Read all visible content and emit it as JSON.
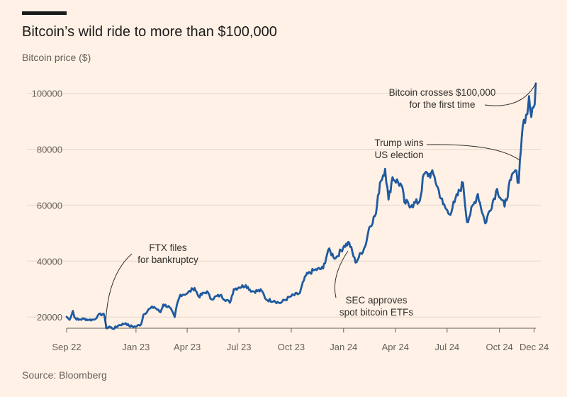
{
  "chart_data": {
    "type": "line",
    "title": "Bitcoin’s wild ride to more than $100,000",
    "ylabel": "Bitcoin price ($)",
    "source": "Source: Bloomberg",
    "x_range": [
      "2022-09-01",
      "2024-12-04"
    ],
    "ylim": [
      16000,
      108000
    ],
    "y_ticks": [
      20000,
      40000,
      60000,
      80000,
      100000
    ],
    "x_ticks": [
      {
        "label": "Sep 22",
        "date": "2022-09-01"
      },
      {
        "label": "Jan 23",
        "date": "2023-01-01"
      },
      {
        "label": "Apr 23",
        "date": "2023-04-01"
      },
      {
        "label": "Jul 23",
        "date": "2023-07-01"
      },
      {
        "label": "Oct 23",
        "date": "2023-10-01"
      },
      {
        "label": "Jan 24",
        "date": "2024-01-01"
      },
      {
        "label": "Apr 24",
        "date": "2024-04-01"
      },
      {
        "label": "Jul 24",
        "date": "2024-07-01"
      },
      {
        "label": "Oct 24",
        "date": "2024-10-01"
      },
      {
        "label": "Dec 24",
        "date": "2024-12-01"
      }
    ],
    "grid": true,
    "colors": {
      "line": "#1f5aa0",
      "grid": "#e5d8cc",
      "text": "#66605c",
      "accent": "#33302e"
    },
    "series": [
      {
        "points": [
          [
            "2022-09-01",
            20100
          ],
          [
            "2022-09-06",
            19000
          ],
          [
            "2022-09-12",
            22200
          ],
          [
            "2022-09-15",
            19800
          ],
          [
            "2022-09-22",
            19000
          ],
          [
            "2022-10-01",
            19400
          ],
          [
            "2022-10-10",
            19000
          ],
          [
            "2022-10-20",
            19100
          ],
          [
            "2022-10-26",
            20600
          ],
          [
            "2022-11-05",
            21200
          ],
          [
            "2022-11-08",
            18500
          ],
          [
            "2022-11-10",
            16000
          ],
          [
            "2022-11-15",
            16600
          ],
          [
            "2022-11-22",
            15800
          ],
          [
            "2022-12-01",
            17000
          ],
          [
            "2022-12-14",
            17800
          ],
          [
            "2022-12-20",
            16800
          ],
          [
            "2022-12-31",
            16550
          ],
          [
            "2023-01-10",
            17400
          ],
          [
            "2023-01-14",
            20800
          ],
          [
            "2023-01-25",
            23000
          ],
          [
            "2023-02-02",
            23600
          ],
          [
            "2023-02-13",
            21700
          ],
          [
            "2023-02-18",
            24500
          ],
          [
            "2023-03-01",
            23500
          ],
          [
            "2023-03-10",
            20000
          ],
          [
            "2023-03-14",
            24500
          ],
          [
            "2023-03-20",
            28000
          ],
          [
            "2023-04-01",
            28400
          ],
          [
            "2023-04-11",
            30000
          ],
          [
            "2023-04-14",
            30400
          ],
          [
            "2023-04-21",
            27300
          ],
          [
            "2023-05-06",
            29200
          ],
          [
            "2023-05-12",
            26500
          ],
          [
            "2023-05-29",
            27800
          ],
          [
            "2023-06-15",
            25100
          ],
          [
            "2023-06-22",
            30000
          ],
          [
            "2023-07-01",
            30600
          ],
          [
            "2023-07-13",
            31400
          ],
          [
            "2023-07-24",
            29200
          ],
          [
            "2023-08-10",
            29400
          ],
          [
            "2023-08-18",
            26200
          ],
          [
            "2023-09-01",
            25800
          ],
          [
            "2023-09-11",
            25000
          ],
          [
            "2023-10-01",
            27500
          ],
          [
            "2023-10-16",
            28500
          ],
          [
            "2023-10-23",
            33000
          ],
          [
            "2023-10-25",
            34500
          ],
          [
            "2023-11-09",
            36700
          ],
          [
            "2023-11-26",
            37400
          ],
          [
            "2023-12-05",
            44000
          ],
          [
            "2023-12-18",
            41000
          ],
          [
            "2024-01-02",
            45500
          ],
          [
            "2024-01-11",
            46600
          ],
          [
            "2024-01-22",
            39500
          ],
          [
            "2024-02-08",
            45300
          ],
          [
            "2024-02-15",
            52000
          ],
          [
            "2024-02-27",
            57000
          ],
          [
            "2024-03-05",
            68000
          ],
          [
            "2024-03-14",
            73000
          ],
          [
            "2024-03-20",
            62000
          ],
          [
            "2024-03-27",
            70000
          ],
          [
            "2024-04-12",
            67000
          ],
          [
            "2024-04-17",
            61000
          ],
          [
            "2024-04-30",
            60000
          ],
          [
            "2024-05-14",
            61500
          ],
          [
            "2024-05-21",
            71000
          ],
          [
            "2024-06-07",
            71000
          ],
          [
            "2024-06-24",
            60300
          ],
          [
            "2024-07-05",
            56700
          ],
          [
            "2024-07-14",
            61000
          ],
          [
            "2024-07-29",
            68000
          ],
          [
            "2024-08-05",
            54000
          ],
          [
            "2024-08-24",
            64000
          ],
          [
            "2024-09-06",
            53500
          ],
          [
            "2024-09-27",
            65800
          ],
          [
            "2024-10-10",
            59500
          ],
          [
            "2024-10-21",
            69000
          ],
          [
            "2024-10-29",
            72500
          ],
          [
            "2024-11-04",
            68000
          ],
          [
            "2024-11-06",
            76000
          ],
          [
            "2024-11-11",
            88000
          ],
          [
            "2024-11-13",
            90500
          ],
          [
            "2024-11-19",
            92500
          ],
          [
            "2024-11-22",
            99000
          ],
          [
            "2024-11-26",
            91500
          ],
          [
            "2024-12-02",
            96000
          ],
          [
            "2024-12-04",
            103500
          ]
        ]
      }
    ],
    "annotations": [
      {
        "lines": [
          "Bitcoin crosses $100,000",
          "for the first time"
        ],
        "date": "2024-12-04",
        "value": 103500
      },
      {
        "lines": [
          "Trump wins",
          "US election"
        ],
        "date": "2024-11-06",
        "value": 76000
      },
      {
        "lines": [
          "FTX files",
          "for bankruptcy"
        ],
        "date": "2022-11-11",
        "value": 16000
      },
      {
        "lines": [
          "SEC approves",
          "spot bitcoin ETFs"
        ],
        "date": "2024-01-11",
        "value": 46600
      }
    ]
  }
}
